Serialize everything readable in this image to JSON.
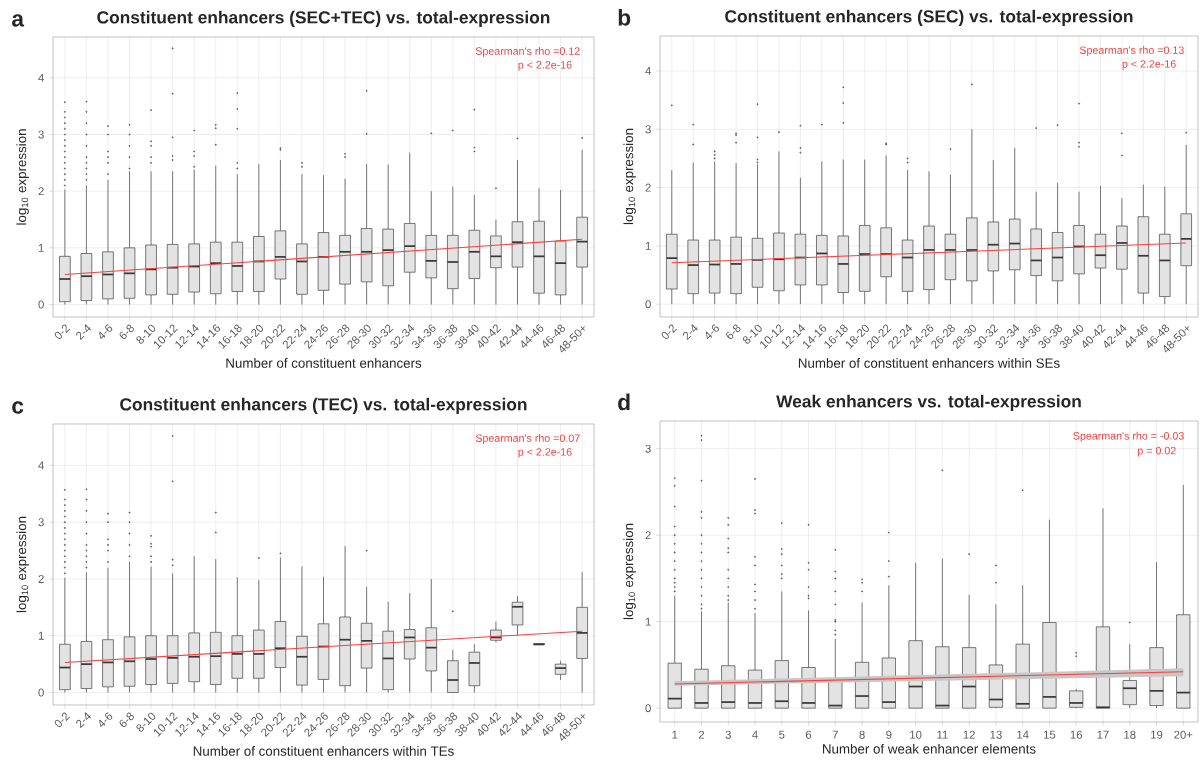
{
  "chart_data": [
    {
      "type": "box",
      "title": "Constituent enhancers (SEC+TEC) vs. total-expression",
      "xlabel": "Number of constituent enhancers",
      "ylabel": "log$_{10}$ expression",
      "categories": [
        "0-2",
        "2-4",
        "4-6",
        "6-8",
        "8-10",
        "10-12",
        "12-14",
        "14-16",
        "16-18",
        "18-20",
        "20-22",
        "22-24",
        "24-26",
        "26-28",
        "28-30",
        "30-32",
        "32-34",
        "34-36",
        "36-38",
        "38-40",
        "40-42",
        "42-44",
        "44-46",
        "46-48",
        "48-50+"
      ],
      "ylim": [
        -0.22,
        4.72
      ],
      "yticks": [
        0,
        1,
        2,
        3,
        4
      ],
      "grid": true,
      "annotations": [
        "a",
        "Spearman's rho =0.12",
        "p < 2.2e-16"
      ],
      "series": [
        {
          "type": "box",
          "color": "#e3e3e3",
          "boxes": [
            {
              "low": 0,
              "q1": 0.05,
              "median": 0.45,
              "q3": 0.85,
              "high": 2.03,
              "outliers": [
                2.1,
                2.2,
                2.3,
                2.4,
                2.5,
                2.6,
                2.7,
                2.8,
                2.9,
                3.0,
                3.1,
                3.2,
                3.3,
                3.4,
                3.57
              ]
            },
            {
              "low": 0,
              "q1": 0.07,
              "median": 0.5,
              "q3": 0.9,
              "high": 2.1,
              "outliers": [
                2.2,
                2.3,
                2.4,
                2.5,
                2.6,
                2.8,
                3.0,
                3.2,
                3.4,
                3.58
              ]
            },
            {
              "low": 0,
              "q1": 0.1,
              "median": 0.53,
              "q3": 0.93,
              "high": 2.2,
              "outliers": [
                2.3,
                2.5,
                2.6,
                2.7,
                3.0,
                3.15
              ]
            },
            {
              "low": 0,
              "q1": 0.11,
              "median": 0.55,
              "q3": 1.0,
              "high": 2.35,
              "outliers": [
                2.4,
                2.6,
                2.8,
                3.0,
                3.17
              ]
            },
            {
              "low": 0,
              "q1": 0.17,
              "median": 0.62,
              "q3": 1.05,
              "high": 2.35,
              "outliers": [
                2.5,
                2.6,
                2.8,
                2.88,
                3.43
              ]
            },
            {
              "low": 0,
              "q1": 0.18,
              "median": 0.65,
              "q3": 1.06,
              "high": 2.35,
              "outliers": [
                2.55,
                2.62,
                2.95,
                3.72,
                4.52
              ]
            },
            {
              "low": 0,
              "q1": 0.22,
              "median": 0.67,
              "q3": 1.07,
              "high": 2.38,
              "outliers": [
                2.43,
                2.62,
                2.7,
                3.07
              ]
            },
            {
              "low": 0,
              "q1": 0.19,
              "median": 0.73,
              "q3": 1.1,
              "high": 2.45,
              "outliers": [
                2.82,
                3.11,
                3.17
              ]
            },
            {
              "low": 0,
              "q1": 0.23,
              "median": 0.68,
              "q3": 1.1,
              "high": 2.3,
              "outliers": [
                2.4,
                2.5,
                3.1,
                3.45,
                3.73
              ]
            },
            {
              "low": 0,
              "q1": 0.23,
              "median": 0.76,
              "q3": 1.2,
              "high": 2.48
            },
            {
              "low": 0,
              "q1": 0.45,
              "median": 0.84,
              "q3": 1.3,
              "high": 2.55,
              "outliers": [
                2.73,
                2.76
              ]
            },
            {
              "low": 0,
              "q1": 0.18,
              "median": 0.76,
              "q3": 1.07,
              "high": 2.3,
              "outliers": [
                2.43,
                2.5
              ]
            },
            {
              "low": 0,
              "q1": 0.25,
              "median": 0.84,
              "q3": 1.27,
              "high": 2.28
            },
            {
              "low": 0,
              "q1": 0.36,
              "median": 0.93,
              "q3": 1.22,
              "high": 2.22,
              "outliers": [
                2.6,
                2.66
              ]
            },
            {
              "low": 0,
              "q1": 0.4,
              "median": 0.93,
              "q3": 1.34,
              "high": 2.48,
              "outliers": [
                3.01,
                3.77
              ]
            },
            {
              "low": 0,
              "q1": 0.33,
              "median": 0.96,
              "q3": 1.33,
              "high": 2.47
            },
            {
              "low": 0,
              "q1": 0.57,
              "median": 1.03,
              "q3": 1.43,
              "high": 2.68
            },
            {
              "low": 0,
              "q1": 0.47,
              "median": 0.77,
              "q3": 1.22,
              "high": 2.0,
              "outliers": [
                3.02
              ]
            },
            {
              "low": 0,
              "q1": 0.28,
              "median": 0.75,
              "q3": 1.22,
              "high": 2.08,
              "outliers": [
                3.07
              ]
            },
            {
              "low": 0,
              "q1": 0.46,
              "median": 0.93,
              "q3": 1.31,
              "high": 1.93,
              "outliers": [
                2.7,
                2.77,
                3.44
              ]
            },
            {
              "low": 0,
              "q1": 0.65,
              "median": 0.85,
              "q3": 1.21,
              "high": 1.5,
              "outliers": [
                2.05
              ]
            },
            {
              "low": 0,
              "q1": 0.66,
              "median": 1.1,
              "q3": 1.46,
              "high": 2.55,
              "outliers": [
                2.93
              ]
            },
            {
              "low": 0,
              "q1": 0.2,
              "median": 0.85,
              "q3": 1.47,
              "high": 2.05
            },
            {
              "low": 0,
              "q1": 0.17,
              "median": 0.73,
              "q3": 1.12,
              "high": 2.02
            },
            {
              "low": 0,
              "q1": 0.66,
              "median": 1.11,
              "q3": 1.54,
              "high": 2.73,
              "outliers": [
                2.94
              ]
            }
          ]
        },
        {
          "type": "line",
          "color": "#ff3b3b",
          "x": [
            "0-2",
            "48-50+"
          ],
          "values": [
            0.53,
            1.15
          ]
        }
      ]
    },
    {
      "type": "box",
      "title": "Constituent enhancers (SEC) vs. total-expression",
      "xlabel": "Number of constituent enhancers within SEs",
      "ylabel": "log$_{10}$ expression",
      "categories": [
        "0-2",
        "2-4",
        "4-6",
        "6-8",
        "8-10",
        "10-12",
        "12-14",
        "14-16",
        "16-18",
        "18-20",
        "20-22",
        "22-24",
        "24-26",
        "26-28",
        "28-30",
        "30-32",
        "32-34",
        "34-36",
        "36-38",
        "38-40",
        "40-42",
        "42-44",
        "44-46",
        "46-48",
        "48-50+"
      ],
      "ylim": [
        -0.22,
        4.6
      ],
      "yticks": [
        0,
        1,
        2,
        3,
        4
      ],
      "grid": true,
      "annotations": [
        "b",
        "Spearman's rho =0.13",
        "p < 2.2e-16"
      ],
      "series": [
        {
          "type": "box",
          "color": "#e3e3e3",
          "boxes": [
            {
              "low": 0,
              "q1": 0.26,
              "median": 0.79,
              "q3": 1.2,
              "high": 2.3,
              "outliers": [
                3.41
              ]
            },
            {
              "low": 0,
              "q1": 0.18,
              "median": 0.67,
              "q3": 1.1,
              "high": 2.43,
              "outliers": [
                2.74,
                3.08
              ]
            },
            {
              "low": 0,
              "q1": 0.19,
              "median": 0.68,
              "q3": 1.1,
              "high": 2.45,
              "outliers": [
                2.5,
                2.56,
                2.62
              ]
            },
            {
              "low": 0,
              "q1": 0.18,
              "median": 0.69,
              "q3": 1.15,
              "high": 2.42,
              "outliers": [
                2.77,
                2.9,
                2.93
              ]
            },
            {
              "low": 0,
              "q1": 0.29,
              "median": 0.76,
              "q3": 1.13,
              "high": 2.4,
              "outliers": [
                2.43,
                2.48,
                2.86,
                3.43
              ]
            },
            {
              "low": 0,
              "q1": 0.23,
              "median": 0.77,
              "q3": 1.22,
              "high": 2.62,
              "outliers": [
                2.95
              ]
            },
            {
              "low": 0,
              "q1": 0.33,
              "median": 0.8,
              "q3": 1.2,
              "high": 2.17,
              "outliers": [
                2.6,
                2.68,
                3.06
              ]
            },
            {
              "low": 0,
              "q1": 0.33,
              "median": 0.87,
              "q3": 1.18,
              "high": 2.45,
              "outliers": [
                3.08
              ]
            },
            {
              "low": 0,
              "q1": 0.2,
              "median": 0.69,
              "q3": 1.17,
              "high": 2.48,
              "outliers": [
                3.11,
                3.45,
                3.72
              ]
            },
            {
              "low": 0,
              "q1": 0.22,
              "median": 0.86,
              "q3": 1.35,
              "high": 2.48
            },
            {
              "low": 0,
              "q1": 0.47,
              "median": 0.86,
              "q3": 1.31,
              "high": 2.55,
              "outliers": [
                2.74,
                2.76
              ]
            },
            {
              "low": 0,
              "q1": 0.22,
              "median": 0.8,
              "q3": 1.1,
              "high": 2.3,
              "outliers": [
                2.43,
                2.5
              ]
            },
            {
              "low": 0,
              "q1": 0.25,
              "median": 0.93,
              "q3": 1.34,
              "high": 2.28
            },
            {
              "low": 0,
              "q1": 0.42,
              "median": 0.93,
              "q3": 1.2,
              "high": 2.22,
              "outliers": [
                2.66
              ]
            },
            {
              "low": 0,
              "q1": 0.4,
              "median": 0.93,
              "q3": 1.48,
              "high": 3.0,
              "outliers": [
                3.77
              ]
            },
            {
              "low": 0,
              "q1": 0.57,
              "median": 1.02,
              "q3": 1.41,
              "high": 2.47
            },
            {
              "low": 0,
              "q1": 0.59,
              "median": 1.04,
              "q3": 1.46,
              "high": 2.68
            },
            {
              "low": 0,
              "q1": 0.49,
              "median": 0.75,
              "q3": 1.29,
              "high": 1.93,
              "outliers": [
                3.02
              ]
            },
            {
              "low": 0,
              "q1": 0.4,
              "median": 0.8,
              "q3": 1.23,
              "high": 2.08,
              "outliers": [
                3.07
              ]
            },
            {
              "low": 0,
              "q1": 0.52,
              "median": 0.99,
              "q3": 1.35,
              "high": 1.93,
              "outliers": [
                2.7,
                2.77,
                3.44
              ]
            },
            {
              "low": 0,
              "q1": 0.62,
              "median": 0.84,
              "q3": 1.2,
              "high": 2.03
            },
            {
              "low": 0,
              "q1": 0.6,
              "median": 1.05,
              "q3": 1.34,
              "high": 1.82,
              "outliers": [
                2.55,
                2.93
              ]
            },
            {
              "low": 0,
              "q1": 0.19,
              "median": 0.83,
              "q3": 1.5,
              "high": 2.05
            },
            {
              "low": 0,
              "q1": 0.13,
              "median": 0.75,
              "q3": 1.2,
              "high": 2.02
            },
            {
              "low": 0,
              "q1": 0.66,
              "median": 1.12,
              "q3": 1.55,
              "high": 2.73,
              "outliers": [
                2.94
              ]
            }
          ]
        },
        {
          "type": "line",
          "color": "#ff3b3b",
          "x": [
            "0-2",
            "48-50+"
          ],
          "values": [
            0.71,
            1.05
          ]
        }
      ]
    },
    {
      "type": "box",
      "title": "Constituent enhancers (TEC) vs. total-expression",
      "xlabel": "Number of constituent enhancers within TEs",
      "ylabel": "log$_{10}$ expression",
      "categories": [
        "0-2",
        "2-4",
        "4-6",
        "6-8",
        "8-10",
        "10-12",
        "12-14",
        "14-16",
        "16-18",
        "18-20",
        "20-22",
        "22-24",
        "24-26",
        "26-28",
        "28-30",
        "30-32",
        "32-34",
        "34-36",
        "36-38",
        "38-40",
        "40-42",
        "42-44",
        "44-46",
        "46-48",
        "48-50+"
      ],
      "ylim": [
        -0.22,
        4.73
      ],
      "yticks": [
        0,
        1,
        2,
        3,
        4
      ],
      "grid": true,
      "annotations": [
        "c",
        "Spearman's rho =0.07",
        "p < 2.2e-16"
      ],
      "series": [
        {
          "type": "box",
          "color": "#e3e3e3",
          "boxes": [
            {
              "low": 0,
              "q1": 0.05,
              "median": 0.44,
              "q3": 0.85,
              "high": 2.02,
              "outliers": [
                2.1,
                2.2,
                2.3,
                2.4,
                2.5,
                2.6,
                2.7,
                2.8,
                2.9,
                3.0,
                3.1,
                3.2,
                3.3,
                3.4,
                3.57
              ]
            },
            {
              "low": 0,
              "q1": 0.07,
              "median": 0.5,
              "q3": 0.9,
              "high": 2.12,
              "outliers": [
                2.2,
                2.3,
                2.4,
                2.5,
                2.6,
                2.8,
                3.0,
                3.2,
                3.4,
                3.58
              ]
            },
            {
              "low": 0,
              "q1": 0.1,
              "median": 0.53,
              "q3": 0.93,
              "high": 2.2,
              "outliers": [
                2.3,
                2.5,
                2.6,
                2.7,
                3.0,
                3.15
              ]
            },
            {
              "low": 0,
              "q1": 0.11,
              "median": 0.55,
              "q3": 0.98,
              "high": 2.3,
              "outliers": [
                2.4,
                2.6,
                2.8,
                3.0,
                3.17
              ]
            },
            {
              "low": 0,
              "q1": 0.14,
              "median": 0.59,
              "q3": 1.0,
              "high": 2.22,
              "outliers": [
                2.3,
                2.4,
                2.57,
                2.62,
                2.76
              ]
            },
            {
              "low": 0,
              "q1": 0.16,
              "median": 0.61,
              "q3": 1.0,
              "high": 2.1,
              "outliers": [
                2.24,
                2.34,
                3.72,
                4.52
              ]
            },
            {
              "low": 0,
              "q1": 0.19,
              "median": 0.63,
              "q3": 1.05,
              "high": 2.4
            },
            {
              "low": 0,
              "q1": 0.14,
              "median": 0.64,
              "q3": 1.06,
              "high": 2.35,
              "outliers": [
                2.82,
                3.17
              ]
            },
            {
              "low": 0,
              "q1": 0.25,
              "median": 0.68,
              "q3": 1.0,
              "high": 2.03
            },
            {
              "low": 0,
              "q1": 0.25,
              "median": 0.68,
              "q3": 1.1,
              "high": 1.98,
              "outliers": [
                2.37
              ]
            },
            {
              "low": 0,
              "q1": 0.44,
              "median": 0.78,
              "q3": 1.25,
              "high": 2.38,
              "outliers": [
                2.45
              ]
            },
            {
              "low": 0,
              "q1": 0.13,
              "median": 0.63,
              "q3": 0.99,
              "high": 2.22
            },
            {
              "low": 0,
              "q1": 0.23,
              "median": 0.81,
              "q3": 1.21,
              "high": 2.04
            },
            {
              "low": 0,
              "q1": 0.12,
              "median": 0.93,
              "q3": 1.33,
              "high": 2.58
            },
            {
              "low": 0,
              "q1": 0.43,
              "median": 0.91,
              "q3": 1.22,
              "high": 1.86,
              "outliers": [
                2.5
              ]
            },
            {
              "low": 0,
              "q1": 0.05,
              "median": 0.6,
              "q3": 1.08,
              "high": 1.6
            },
            {
              "low": 0,
              "q1": 0.59,
              "median": 0.97,
              "q3": 1.11,
              "high": 1.75
            },
            {
              "low": 0,
              "q1": 0.38,
              "median": 0.79,
              "q3": 1.14,
              "high": 2.0
            },
            {
              "low": 0,
              "q1": 0,
              "median": 0.22,
              "q3": 0.56,
              "high": 0.75,
              "outliers": [
                1.43
              ]
            },
            {
              "low": 0,
              "q1": 0.12,
              "median": 0.52,
              "q3": 0.71,
              "high": 0.85
            },
            {
              "low": 0.88,
              "q1": 0.92,
              "median": 0.97,
              "q3": 1.1,
              "high": 1.25
            },
            {
              "low": 1.0,
              "q1": 1.19,
              "median": 1.51,
              "q3": 1.59,
              "high": 1.7
            },
            {
              "low": 0.84,
              "q1": 0.84,
              "median": 0.85,
              "q3": 0.86,
              "high": 0.86
            },
            {
              "low": 0.22,
              "q1": 0.32,
              "median": 0.43,
              "q3": 0.5,
              "high": 0.56
            },
            {
              "low": 0,
              "q1": 0.6,
              "median": 1.05,
              "q3": 1.5,
              "high": 2.12
            }
          ]
        },
        {
          "type": "line",
          "color": "#ff3b3b",
          "x": [
            "0-2",
            "48-50+"
          ],
          "values": [
            0.53,
            1.08
          ]
        }
      ]
    },
    {
      "type": "box",
      "title": "Weak enhancers vs. total-expression",
      "xlabel": "Number of weak enhancer elements",
      "ylabel": "log$_{10}$ expression",
      "categories": [
        "1",
        "2",
        "3",
        "4",
        "5",
        "6",
        "7",
        "8",
        "9",
        "10",
        "11",
        "12",
        "13",
        "14",
        "15",
        "16",
        "17",
        "18",
        "19",
        "20+"
      ],
      "ylim": [
        -0.16,
        3.32
      ],
      "yticks": [
        0,
        1,
        2,
        3
      ],
      "grid": true,
      "annotations": [
        "d",
        "Spearman's rho = -0.03",
        "p = 0.02"
      ],
      "series": [
        {
          "type": "box",
          "color": "#e3e3e3",
          "boxes": [
            {
              "low": 0,
              "q1": 0,
              "median": 0.11,
              "q3": 0.52,
              "high": 1.3,
              "outliers": [
                1.35,
                1.4,
                1.45,
                1.5,
                1.6,
                1.7,
                1.8,
                1.9,
                2.0,
                2.1,
                2.33,
                2.57,
                2.66
              ]
            },
            {
              "low": 0,
              "q1": 0,
              "median": 0.06,
              "q3": 0.45,
              "high": 1.12,
              "outliers": [
                1.15,
                1.2,
                1.3,
                1.4,
                1.5,
                1.6,
                1.7,
                1.8,
                1.9,
                2.0,
                2.2,
                2.27,
                2.63,
                3.1,
                3.15
              ]
            },
            {
              "low": 0,
              "q1": 0,
              "median": 0.07,
              "q3": 0.49,
              "high": 1.22,
              "outliers": [
                1.25,
                1.3,
                1.4,
                1.5,
                1.6,
                1.8,
                1.85,
                1.96,
                2.12,
                2.2
              ]
            },
            {
              "low": 0,
              "q1": 0,
              "median": 0.06,
              "q3": 0.44,
              "high": 1.1,
              "outliers": [
                1.15,
                1.25,
                1.35,
                1.43,
                1.65,
                1.75,
                2.25,
                2.29,
                2.65
              ]
            },
            {
              "low": 0,
              "q1": 0,
              "median": 0.08,
              "q3": 0.55,
              "high": 1.35,
              "outliers": [
                1.5,
                1.55,
                1.65,
                1.78,
                1.84,
                2.14
              ]
            },
            {
              "low": 0,
              "q1": 0,
              "median": 0.06,
              "q3": 0.47,
              "high": 1.13,
              "outliers": [
                1.27,
                1.3,
                1.4,
                1.6,
                1.68,
                2.12
              ]
            },
            {
              "low": 0,
              "q1": 0,
              "median": 0.03,
              "q3": 0.33,
              "high": 0.8,
              "outliers": [
                0.85,
                0.9,
                1.0,
                1.02,
                1.2,
                1.35,
                1.5,
                1.58,
                1.83
              ]
            },
            {
              "low": 0,
              "q1": 0,
              "median": 0.14,
              "q3": 0.53,
              "high": 1.22,
              "outliers": [
                1.35,
                1.45,
                1.49
              ]
            },
            {
              "low": 0,
              "q1": 0,
              "median": 0.07,
              "q3": 0.58,
              "high": 1.42,
              "outliers": [
                1.52,
                1.7,
                2.03
              ]
            },
            {
              "low": 0,
              "q1": 0,
              "median": 0.25,
              "q3": 0.78,
              "high": 1.68
            },
            {
              "low": 0,
              "q1": 0,
              "median": 0.03,
              "q3": 0.71,
              "high": 1.73,
              "outliers": [
                2.75
              ]
            },
            {
              "low": 0,
              "q1": 0,
              "median": 0.25,
              "q3": 0.7,
              "high": 1.31,
              "outliers": [
                1.78
              ]
            },
            {
              "low": 0,
              "q1": 0.01,
              "median": 0.1,
              "q3": 0.5,
              "high": 1.2,
              "outliers": [
                1.45,
                1.65
              ]
            },
            {
              "low": 0,
              "q1": 0,
              "median": 0.05,
              "q3": 0.74,
              "high": 1.42,
              "outliers": [
                2.52
              ]
            },
            {
              "low": 0,
              "q1": 0,
              "median": 0.13,
              "q3": 0.99,
              "high": 2.18
            },
            {
              "low": 0,
              "q1": 0.01,
              "median": 0.06,
              "q3": 0.2,
              "high": 0.22,
              "outliers": [
                0.6,
                0.64
              ]
            },
            {
              "low": 0,
              "q1": 0,
              "median": 0.01,
              "q3": 0.94,
              "high": 2.31
            },
            {
              "low": 0,
              "q1": 0.04,
              "median": 0.23,
              "q3": 0.32,
              "high": 0.74,
              "outliers": [
                0.99
              ]
            },
            {
              "low": 0,
              "q1": 0.03,
              "median": 0.2,
              "q3": 0.7,
              "high": 1.69
            },
            {
              "low": 0,
              "q1": 0,
              "median": 0.18,
              "q3": 1.08,
              "high": 2.58
            }
          ]
        },
        {
          "type": "line",
          "color": "#ff3b3b",
          "x": [
            "1",
            "20+"
          ],
          "values": [
            0.28,
            0.42
          ],
          "lower": [
            0.26,
            0.37
          ],
          "upper": [
            0.31,
            0.46
          ]
        }
      ]
    }
  ]
}
